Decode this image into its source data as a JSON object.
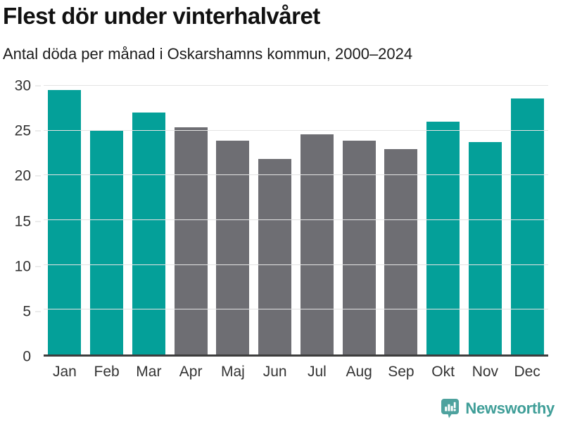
{
  "chart_data": {
    "type": "bar",
    "title": "Flest dör under vinterhalvåret",
    "subtitle": "Antal döda per månad i Oskarshamns kommun, 2000–2024",
    "categories": [
      "Jan",
      "Feb",
      "Mar",
      "Apr",
      "Maj",
      "Jun",
      "Jul",
      "Aug",
      "Sep",
      "Okt",
      "Nov",
      "Dec"
    ],
    "values": [
      29.5,
      25.0,
      27.0,
      25.4,
      23.9,
      21.8,
      24.6,
      23.9,
      22.9,
      26.0,
      23.7,
      28.6
    ],
    "highlighted": [
      true,
      true,
      true,
      false,
      false,
      false,
      false,
      false,
      false,
      true,
      true,
      true
    ],
    "xlabel": "",
    "ylabel": "",
    "ylim": [
      0,
      30
    ],
    "yticks": [
      0,
      5,
      10,
      15,
      20,
      25,
      30
    ],
    "grid": true,
    "legend": "none",
    "colors": {
      "highlight": "#04a099",
      "muted": "#6e6e73",
      "gridline": "#e3e3e3",
      "axis": "#3d3d3d",
      "tick_text": "#333333"
    }
  },
  "footer": {
    "logo_text": "Newsworthy",
    "logo_icon": "newsworthy-bar-chart-bubble-icon",
    "logo_icon_color": "#4ea29e",
    "logo_text_color": "#3f9e98"
  }
}
